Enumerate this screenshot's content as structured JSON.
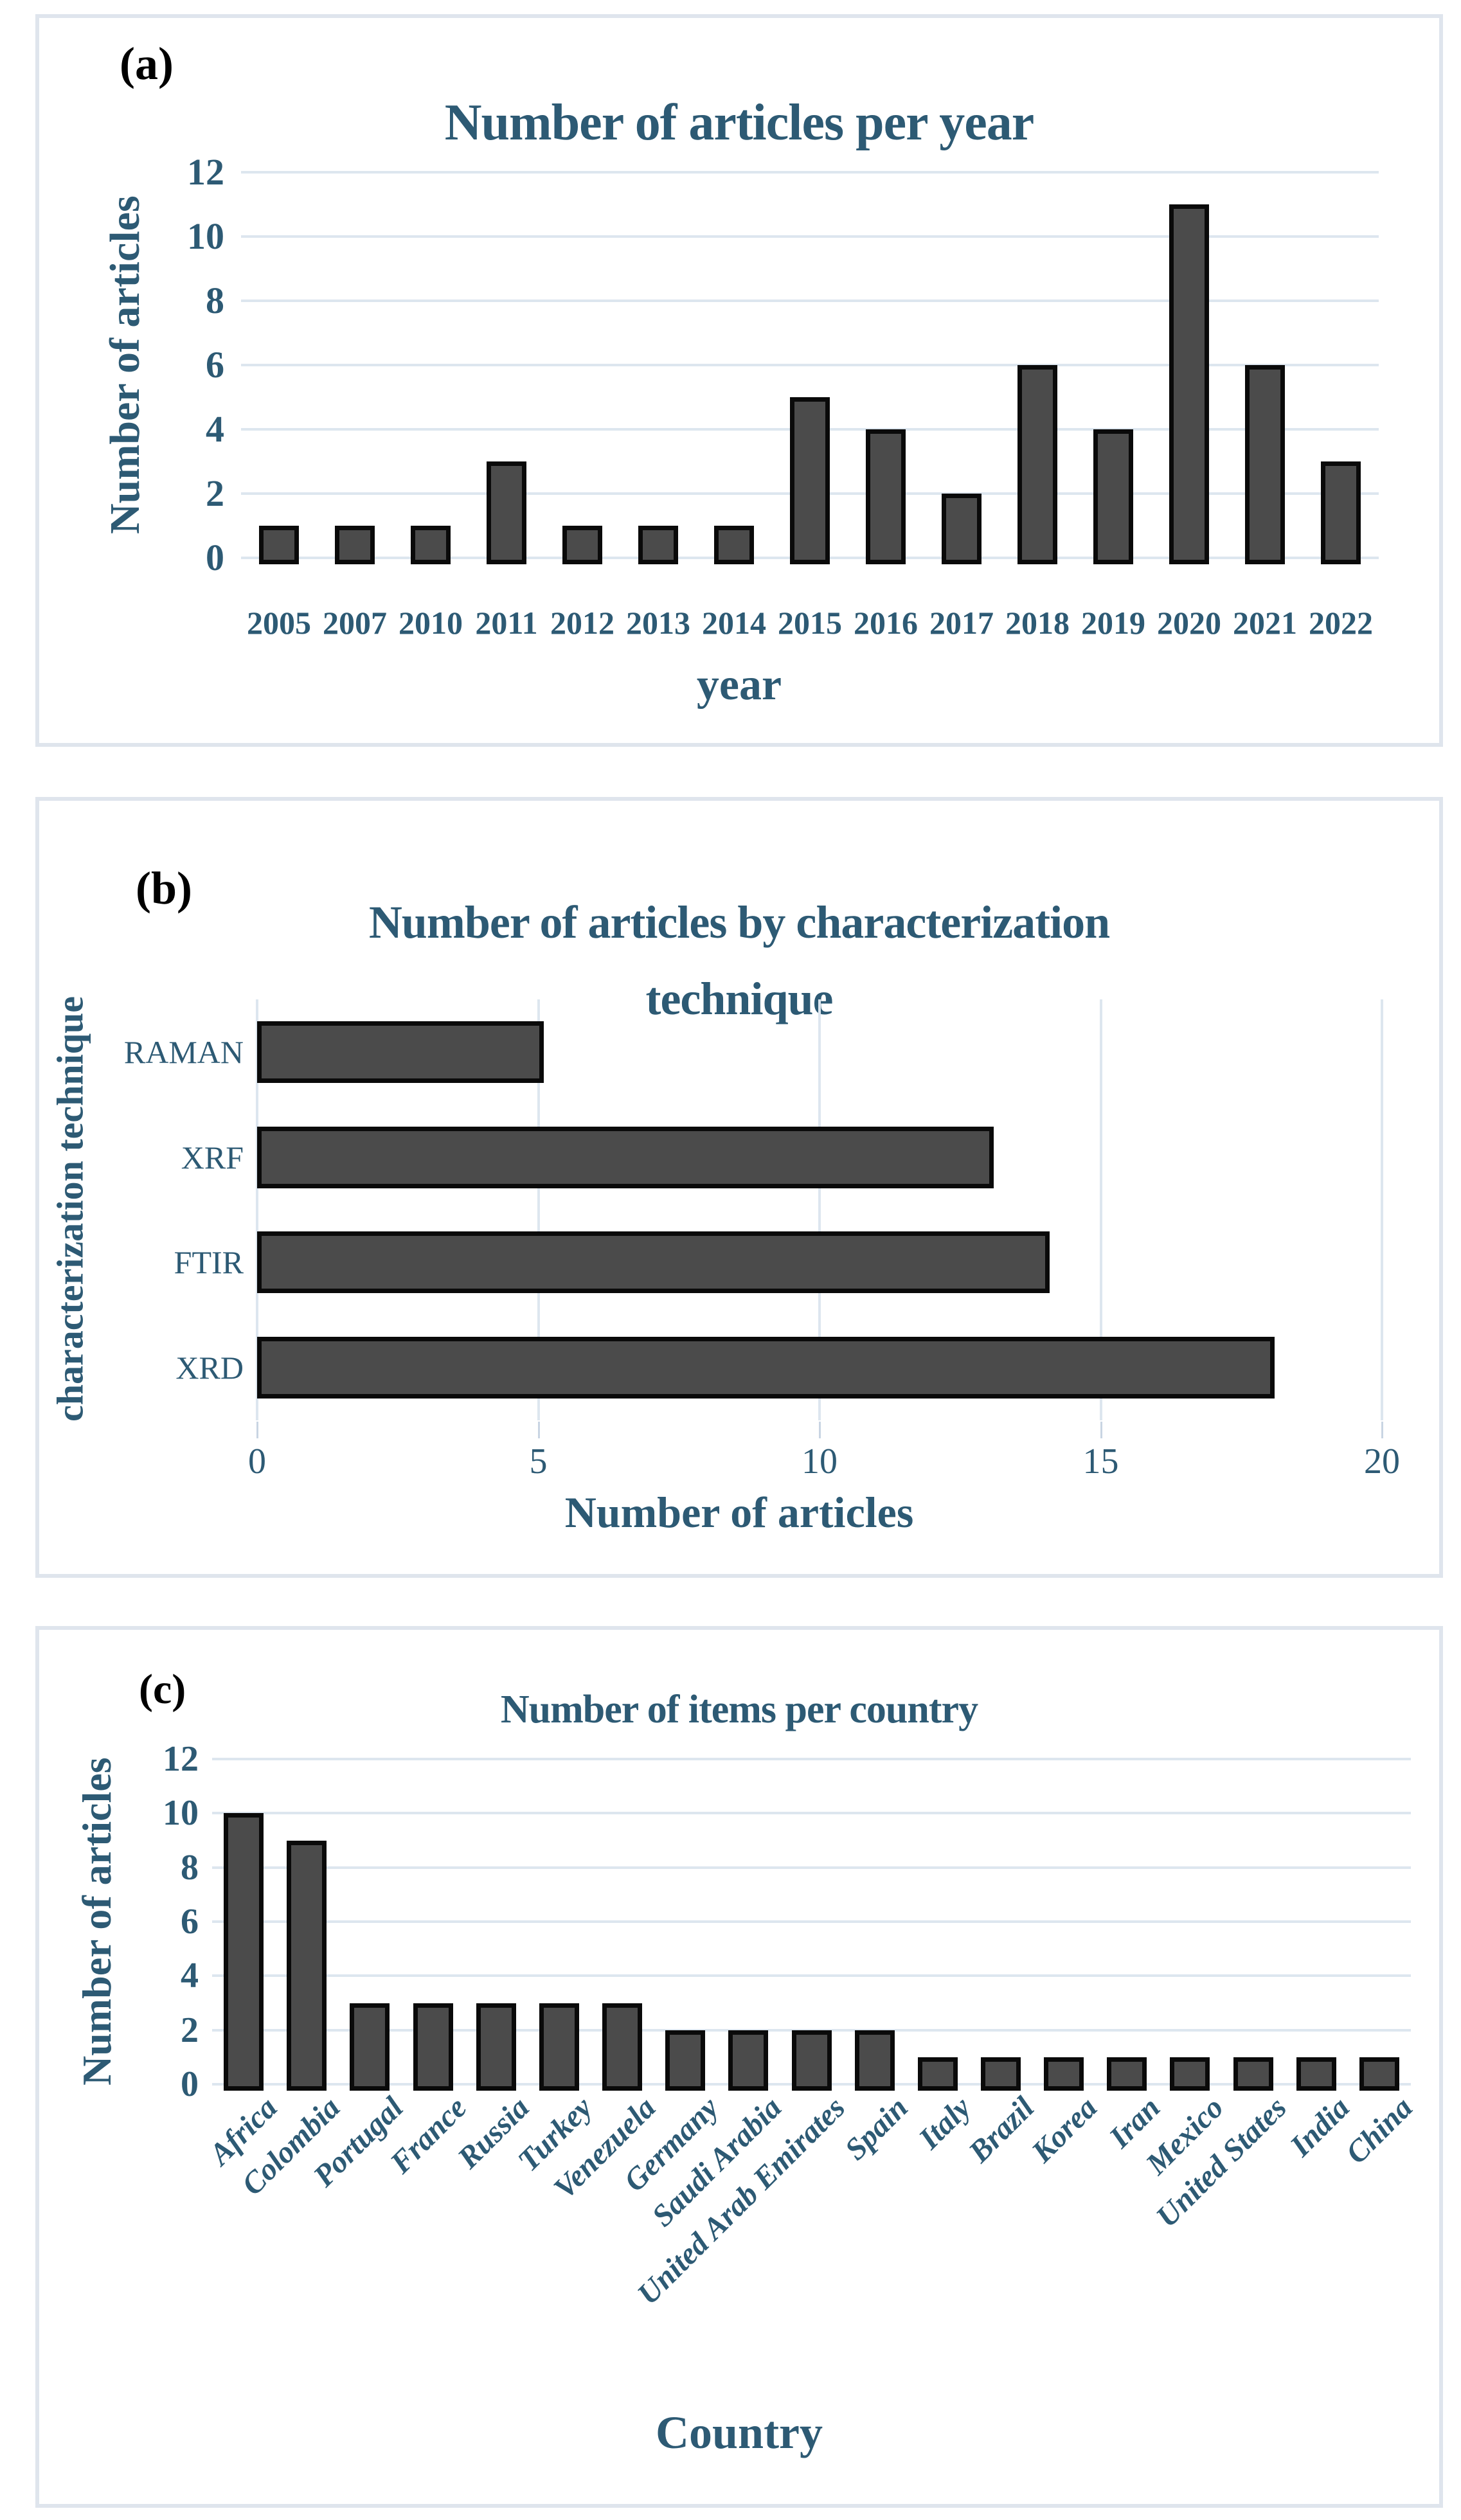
{
  "colors": {
    "accent_text": "#2d5a74",
    "bar_fill": "#4b4b4b",
    "bar_border": "#0a0a0a",
    "gridline": "#dde6ef",
    "panel_border": "#dfe5ed"
  },
  "chart_data": [
    {
      "id": "a",
      "panel_label": "(a)",
      "type": "bar",
      "title": "Number of articles per year",
      "xlabel": "year",
      "ylabel": "Number of articles",
      "categories": [
        "2005",
        "2007",
        "2010",
        "2011",
        "2012",
        "2013",
        "2014",
        "2015",
        "2016",
        "2017",
        "2018",
        "2019",
        "2020",
        "2021",
        "2022"
      ],
      "values": [
        1,
        1,
        1,
        3,
        1,
        1,
        1,
        5,
        4,
        2,
        6,
        4,
        11,
        6,
        3
      ],
      "y_ticks": [
        0,
        2,
        4,
        6,
        8,
        10,
        12
      ],
      "ylim": [
        0,
        12
      ],
      "grid": "horizontal",
      "legend": null
    },
    {
      "id": "b",
      "panel_label": "(b)",
      "type": "bar-horizontal",
      "title": "Number of articles by characterization technique",
      "title_lines": [
        "Number of articles by characterization",
        "technique"
      ],
      "xlabel": "Number of articles",
      "ylabel": "characterization technique",
      "categories": [
        "RAMAN",
        "XRF",
        "FTIR",
        "XRD"
      ],
      "values": [
        5,
        13,
        14,
        18
      ],
      "x_ticks": [
        0,
        5,
        10,
        15,
        20
      ],
      "xlim": [
        0,
        20
      ],
      "grid": "vertical",
      "legend": null
    },
    {
      "id": "c",
      "panel_label": "(c)",
      "type": "bar",
      "title": "Number of items per country",
      "xlabel": "Country",
      "ylabel": "Number of articles",
      "categories": [
        "Africa",
        "Colombia",
        "Portugal",
        "France",
        "Russia",
        "Turkey",
        "Venezuela",
        "Germany",
        "Saudi Arabia",
        "United Arab Emirates",
        "Spain",
        "Italy",
        "Brazil",
        "Korea",
        "Iran",
        "Mexico",
        "United States",
        "India",
        "China"
      ],
      "values": [
        10,
        9,
        3,
        3,
        3,
        3,
        3,
        2,
        2,
        2,
        2,
        1,
        1,
        1,
        1,
        1,
        1,
        1,
        1
      ],
      "y_ticks": [
        0,
        2,
        4,
        6,
        8,
        10,
        12
      ],
      "ylim": [
        0,
        12
      ],
      "grid": "horizontal",
      "legend": null
    }
  ]
}
